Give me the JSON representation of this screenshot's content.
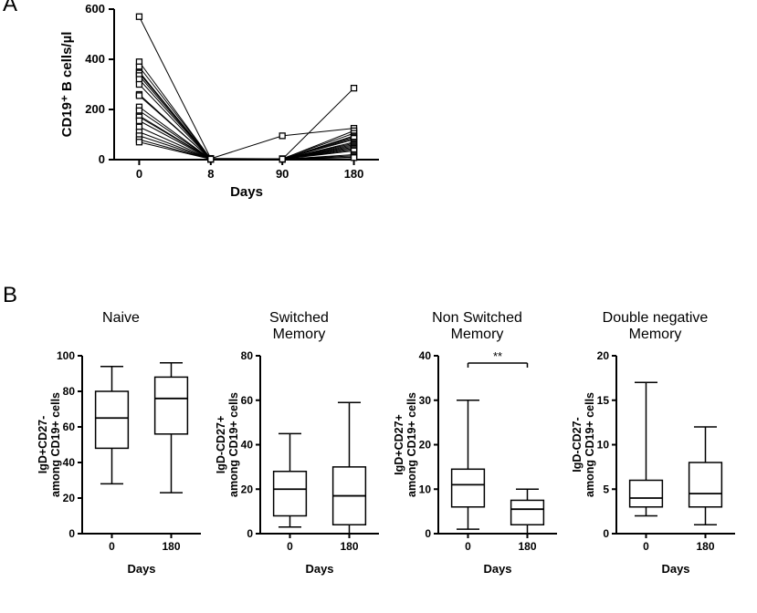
{
  "panel_labels": {
    "A": "A",
    "B": "B"
  },
  "panelA": {
    "type": "line-scatter",
    "title": "",
    "ylabel": "CD19⁺ B cells/µl",
    "xlabel": "Days",
    "xlim": [
      0,
      180
    ],
    "x_ticks": [
      0,
      8,
      90,
      180
    ],
    "ylim": [
      0,
      600
    ],
    "y_ticks": [
      0,
      200,
      400,
      600
    ],
    "marker": "square-open",
    "marker_size": 6,
    "line_color": "#000000",
    "background": "#ffffff",
    "series": [
      [
        570,
        5,
        3,
        80
      ],
      [
        390,
        3,
        2,
        285
      ],
      [
        370,
        4,
        95,
        125
      ],
      [
        350,
        2,
        3,
        115
      ],
      [
        345,
        3,
        4,
        105
      ],
      [
        335,
        2,
        2,
        95
      ],
      [
        320,
        3,
        3,
        90
      ],
      [
        300,
        2,
        2,
        85
      ],
      [
        260,
        2,
        2,
        70
      ],
      [
        255,
        3,
        3,
        65
      ],
      [
        210,
        2,
        2,
        60
      ],
      [
        195,
        2,
        2,
        55
      ],
      [
        175,
        2,
        2,
        50
      ],
      [
        170,
        2,
        2,
        45
      ],
      [
        155,
        2,
        2,
        40
      ],
      [
        130,
        2,
        2,
        35
      ],
      [
        110,
        2,
        2,
        20
      ],
      [
        95,
        2,
        2,
        15
      ],
      [
        80,
        2,
        2,
        10
      ],
      [
        70,
        2,
        2,
        8
      ]
    ]
  },
  "panelB": {
    "plots": [
      {
        "title_line1": "Naive",
        "title_line2": "",
        "ylabel": "IgD+CD27-\namong CD19+ cells",
        "xlabel": "Days",
        "ylim": [
          0,
          100
        ],
        "y_ticks": [
          0,
          20,
          40,
          60,
          80,
          100
        ],
        "x_categories": [
          "0",
          "180"
        ],
        "boxes": [
          {
            "min": 28,
            "q1": 48,
            "median": 65,
            "q3": 80,
            "max": 94
          },
          {
            "min": 23,
            "q1": 56,
            "median": 76,
            "q3": 88,
            "max": 96
          }
        ],
        "sig": null
      },
      {
        "title_line1": "Switched",
        "title_line2": "Memory",
        "ylabel": "IgD-CD27+\namong CD19+ cells",
        "xlabel": "Days",
        "ylim": [
          0,
          80
        ],
        "y_ticks": [
          0,
          20,
          40,
          60,
          80
        ],
        "x_categories": [
          "0",
          "180"
        ],
        "boxes": [
          {
            "min": 3,
            "q1": 8,
            "median": 20,
            "q3": 28,
            "max": 45
          },
          {
            "min": 0,
            "q1": 4,
            "median": 17,
            "q3": 30,
            "max": 59
          }
        ],
        "sig": null
      },
      {
        "title_line1": "Non Switched",
        "title_line2": "Memory",
        "ylabel": "IgD+CD27+\namong CD19+ cells",
        "xlabel": "Days",
        "ylim": [
          0,
          40
        ],
        "y_ticks": [
          0,
          10,
          20,
          30,
          40
        ],
        "x_categories": [
          "0",
          "180"
        ],
        "boxes": [
          {
            "min": 1,
            "q1": 6,
            "median": 11,
            "q3": 14.5,
            "max": 30
          },
          {
            "min": 0,
            "q1": 2,
            "median": 5.5,
            "q3": 7.5,
            "max": 10
          }
        ],
        "sig": "**"
      },
      {
        "title_line1": "Double negative",
        "title_line2": "Memory",
        "ylabel": "IgD-CD27-\namong CD19+ cells",
        "xlabel": "Days",
        "ylim": [
          0,
          20
        ],
        "y_ticks": [
          0,
          5,
          10,
          15,
          20
        ],
        "x_categories": [
          "0",
          "180"
        ],
        "boxes": [
          {
            "min": 2,
            "q1": 3,
            "median": 4,
            "q3": 6,
            "max": 17
          },
          {
            "min": 1,
            "q1": 3,
            "median": 4.5,
            "q3": 8,
            "max": 12
          }
        ],
        "sig": null
      }
    ],
    "colors": {
      "stroke": "#000000",
      "fill": "#ffffff",
      "background": "#ffffff"
    },
    "fontsize_title": 15,
    "fontsize_label": 13,
    "fontsize_tick": 12
  }
}
